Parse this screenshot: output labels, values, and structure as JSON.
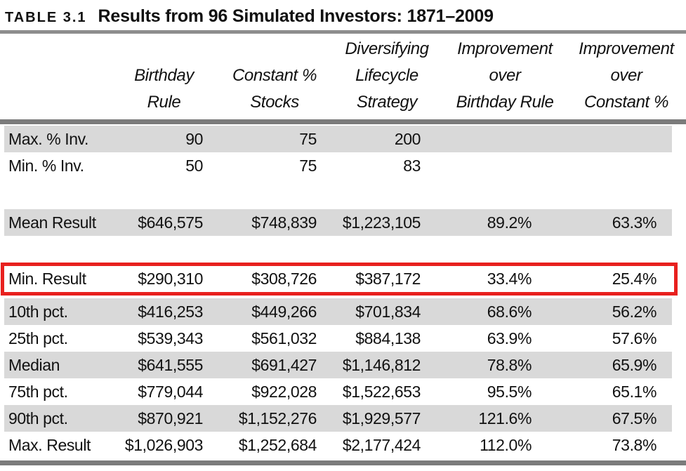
{
  "caption": {
    "label": "TABLE 3.1",
    "title": "Results from 96 Simulated Investors: 1871–2009"
  },
  "table": {
    "headers": [
      {
        "lines": [
          "Birthday",
          "Rule"
        ]
      },
      {
        "lines": [
          "Constant %",
          "Stocks"
        ]
      },
      {
        "lines": [
          "Diversifying",
          "Lifecycle",
          "Strategy"
        ]
      },
      {
        "lines": [
          "Improvement",
          "over",
          "Birthday Rule"
        ]
      },
      {
        "lines": [
          "Improvement",
          "over",
          "Constant %"
        ]
      }
    ],
    "rows": [
      {
        "label": "Max. % Inv.",
        "values": [
          "90",
          "75",
          "200",
          "",
          ""
        ]
      },
      {
        "label": "Min. % Inv.",
        "values": [
          "50",
          "75",
          "83",
          "",
          ""
        ]
      },
      {
        "label": "Mean Result",
        "values": [
          "$646,575",
          "$748,839",
          "$1,223,105",
          "89.2%",
          "63.3%"
        ]
      },
      {
        "label": "Min. Result",
        "values": [
          "$290,310",
          "$308,726",
          "$387,172",
          "33.4%",
          "25.4%"
        ],
        "highlighted": true
      },
      {
        "label": "10th pct.",
        "values": [
          "$416,253",
          "$449,266",
          "$701,834",
          "68.6%",
          "56.2%"
        ]
      },
      {
        "label": "25th pct.",
        "values": [
          "$539,343",
          "$561,032",
          "$884,138",
          "63.9%",
          "57.6%"
        ]
      },
      {
        "label": "Median",
        "values": [
          "$641,555",
          "$691,427",
          "$1,146,812",
          "78.8%",
          "65.9%"
        ]
      },
      {
        "label": "75th pct.",
        "values": [
          "$779,044",
          "$922,028",
          "$1,522,653",
          "95.5%",
          "65.1%"
        ]
      },
      {
        "label": "90th pct.",
        "values": [
          "$870,921",
          "$1,152,276",
          "$1,929,577",
          "121.6%",
          "67.5%"
        ]
      },
      {
        "label": "Max. Result",
        "values": [
          "$1,026,903",
          "$1,252,684",
          "$2,177,424",
          "112.0%",
          "73.8%"
        ]
      }
    ]
  },
  "colors": {
    "stripe": "#d9d9d9",
    "rule": "#7b7b7b",
    "caption_rule": "#8d8d8d",
    "highlight": "#e8201e"
  }
}
